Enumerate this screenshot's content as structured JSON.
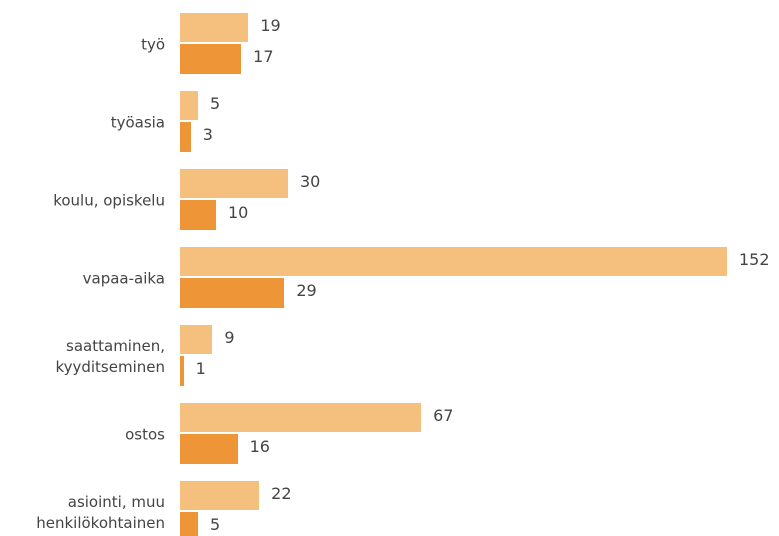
{
  "chart_data": {
    "type": "bar",
    "orientation": "horizontal",
    "categories": [
      "työ",
      "työasia",
      "koulu, opiskelu",
      "vapaa-aika",
      "saattaminen, kyyditseminen",
      "ostos",
      "asiointi, muu henkilökohtainen"
    ],
    "series": [
      {
        "color": "#f5c07e",
        "values": [
          19,
          5,
          30,
          152,
          9,
          67,
          22
        ]
      },
      {
        "color": "#ee9537",
        "values": [
          17,
          3,
          10,
          29,
          1,
          16,
          5
        ]
      }
    ]
  }
}
